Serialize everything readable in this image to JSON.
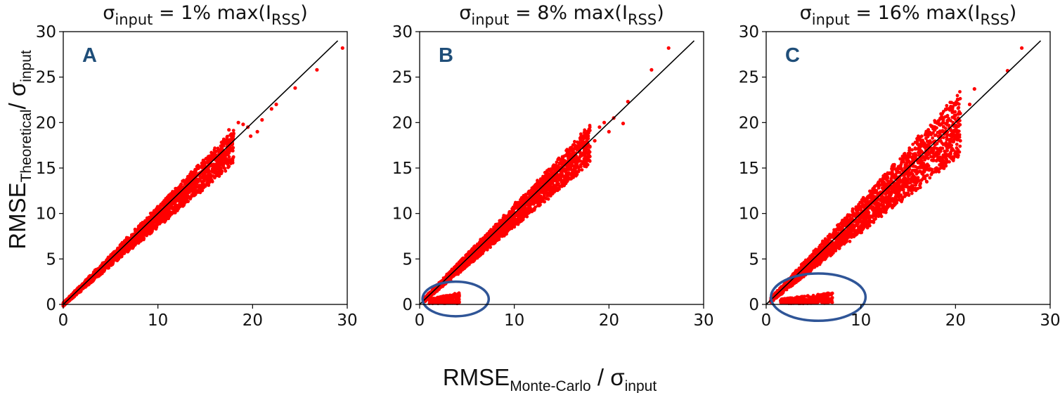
{
  "figure": {
    "ylabel": {
      "main": "RMSE",
      "sub": "Theoretical",
      "mid": "/ σ",
      "sub2": "input"
    },
    "xlabel": {
      "main": "RMSE",
      "sub": "Monte-Carlo",
      "mid": " / σ",
      "sub2": "input"
    }
  },
  "colors": {
    "points": "#ff0000",
    "identity_line": "#000000",
    "annotation": "#2f5597",
    "letter": "#1f4e79",
    "frame": "#000000"
  },
  "chart_data": [
    {
      "type": "scatter",
      "letter": "A",
      "title": {
        "pre": "σ",
        "sub": "input",
        "mid": " = 1% max(I",
        "sub2": "RSS",
        "post": ")"
      },
      "xlim": [
        0,
        30
      ],
      "ylim": [
        0,
        30
      ],
      "xticks": [
        "0",
        "10",
        "20",
        "30"
      ],
      "yticks": [
        "0",
        "5",
        "10",
        "15",
        "20",
        "25",
        "30"
      ],
      "reference_line": {
        "x": [
          0,
          29
        ],
        "y": [
          0,
          29
        ]
      },
      "band": {
        "x_min": 0,
        "x_max": 18,
        "lower_slope": 0.86,
        "upper_slope": 1.07
      },
      "outliers": [
        [
          29.5,
          28.2
        ],
        [
          26.8,
          25.8
        ],
        [
          24.5,
          23.8
        ],
        [
          22.5,
          22.0
        ],
        [
          22.0,
          21.5
        ],
        [
          21.0,
          20.3
        ],
        [
          20.5,
          19.0
        ],
        [
          19.5,
          19.5
        ],
        [
          19.0,
          19.8
        ],
        [
          18.5,
          20.0
        ],
        [
          18.0,
          18.8
        ],
        [
          17.5,
          19.2
        ],
        [
          19.8,
          18.5
        ],
        [
          17.0,
          18.0
        ]
      ],
      "annotation": null
    },
    {
      "type": "scatter",
      "letter": "B",
      "title": {
        "pre": "σ",
        "sub": "input",
        "mid": " = 8% max(I",
        "sub2": "RSS",
        "post": ")"
      },
      "xlim": [
        0,
        30
      ],
      "ylim": [
        0,
        30
      ],
      "xticks": [
        "0",
        "10",
        "20",
        "30"
      ],
      "yticks": [
        "0",
        "5",
        "10",
        "15",
        "20",
        "25",
        "30"
      ],
      "reference_line": {
        "x": [
          0,
          29
        ],
        "y": [
          0,
          29
        ]
      },
      "band": {
        "x_min": 0.5,
        "x_max": 18,
        "lower_slope": 0.86,
        "upper_slope": 1.09
      },
      "low_cluster": {
        "x_range": [
          1.0,
          4.2
        ],
        "y_range": [
          0.1,
          1.3
        ]
      },
      "outliers": [
        [
          26.3,
          28.2
        ],
        [
          24.5,
          25.8
        ],
        [
          22.0,
          22.3
        ],
        [
          21.5,
          19.9
        ],
        [
          20.5,
          20.5
        ],
        [
          19.5,
          20.0
        ],
        [
          19.0,
          19.5
        ],
        [
          18.5,
          18.0
        ],
        [
          20.0,
          19.0
        ],
        [
          17.5,
          17.8
        ]
      ],
      "annotation": {
        "shape": "ellipse",
        "cx": 3.8,
        "cy": 0.6,
        "rx": 3.5,
        "ry": 1.9
      }
    },
    {
      "type": "scatter",
      "letter": "C",
      "title": {
        "pre": "σ",
        "sub": "input",
        "mid": " = 16% max(I",
        "sub2": "RSS",
        "post": ")"
      },
      "xlim": [
        0,
        30
      ],
      "ylim": [
        0,
        30
      ],
      "xticks": [
        "0",
        "10",
        "20",
        "30"
      ],
      "yticks": [
        "0",
        "5",
        "10",
        "15",
        "20",
        "25",
        "30"
      ],
      "reference_line": {
        "x": [
          0,
          29
        ],
        "y": [
          0,
          29
        ]
      },
      "band": {
        "x_min": 0.5,
        "x_max": 20.5,
        "lower_slope": 0.8,
        "upper_slope": 1.14
      },
      "low_cluster": {
        "x_range": [
          1.5,
          7.0
        ],
        "y_range": [
          0.1,
          1.3
        ]
      },
      "outliers": [
        [
          27.0,
          28.2
        ],
        [
          25.5,
          25.7
        ],
        [
          22.0,
          23.7
        ],
        [
          21.5,
          22.0
        ],
        [
          20.5,
          21.0
        ],
        [
          20.0,
          20.8
        ],
        [
          20.3,
          19.6
        ],
        [
          20.5,
          18.0
        ],
        [
          18.0,
          15.0
        ],
        [
          19.5,
          19.2
        ],
        [
          19.0,
          16.5
        ]
      ],
      "annotation": {
        "shape": "ellipse",
        "cx": 5.5,
        "cy": 0.8,
        "rx": 5.0,
        "ry": 2.6
      }
    }
  ]
}
